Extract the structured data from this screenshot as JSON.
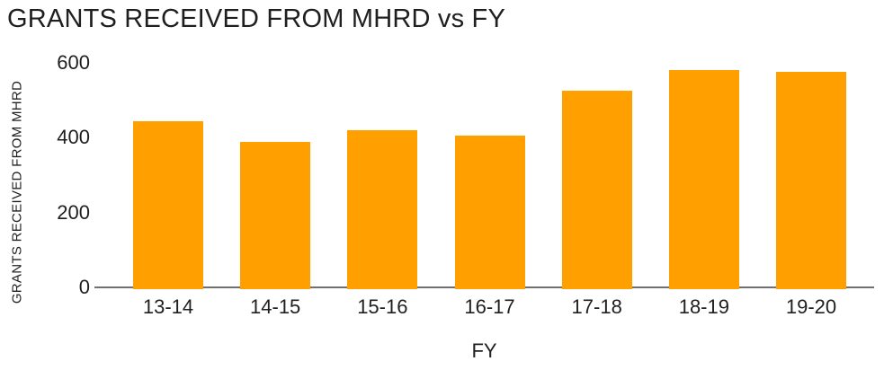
{
  "chart_data": {
    "type": "bar",
    "title": "GRANTS RECEIVED FROM MHRD vs FY",
    "xlabel": "FY",
    "ylabel": "GRANTS RECEIVED FROM MHRD",
    "categories": [
      "13-14",
      "14-15",
      "15-16",
      "16-17",
      "17-18",
      "18-19",
      "19-20"
    ],
    "values": [
      445,
      390,
      420,
      405,
      525,
      580,
      575
    ],
    "yticks": [
      0,
      200,
      400,
      600
    ],
    "ylim": [
      0,
      600
    ],
    "grid": false,
    "legend": false,
    "colors": {
      "bar": "#FFA000",
      "axis_line": "#707070",
      "text": "#1F1F1F",
      "background": "#FFFFFF"
    }
  }
}
